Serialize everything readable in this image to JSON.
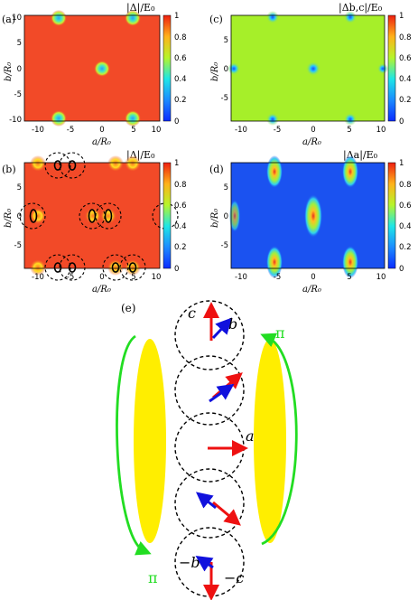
{
  "panels": [
    {
      "id": "a",
      "label": "(a)",
      "title": "|Δ|/E₀",
      "xlabel": "a/R₀",
      "ylabel": "b/R₀",
      "xticks": [
        "-10",
        "-5",
        "0",
        "5",
        "10"
      ],
      "yticks": [
        "10",
        "5",
        "0",
        "-5",
        "-10"
      ],
      "cbar": [
        "1",
        "0.8",
        "0.6",
        "0.4",
        "0.2",
        "0"
      ]
    },
    {
      "id": "b",
      "label": "(b)",
      "title": "|Δ|/E₀",
      "xlabel": "a/R₀",
      "ylabel": "b/R₀",
      "xticks": [
        "-10",
        "-5",
        "0",
        "5",
        "10"
      ],
      "yticks": [
        "5",
        "0",
        "-5"
      ],
      "cbar": [
        "1",
        "0.8",
        "0.6",
        "0.4",
        "0.2",
        "0"
      ]
    },
    {
      "id": "c",
      "label": "(c)",
      "title": "|Δb,c|/E₀",
      "xlabel": "a/R₀",
      "ylabel": "b/R₀",
      "xticks": [
        "-10",
        "-5",
        "0",
        "5",
        "10"
      ],
      "yticks": [
        "5",
        "0",
        "-5"
      ],
      "cbar": [
        "1",
        "0.8",
        "0.6",
        "0.4",
        "0.2",
        "0"
      ]
    },
    {
      "id": "d",
      "label": "(d)",
      "title": "|Δa|/E₀",
      "xlabel": "a/R₀",
      "ylabel": "b/R₀",
      "xticks": [
        "-10",
        "-5",
        "0",
        "5",
        "10"
      ],
      "yticks": [
        "5",
        "0",
        "-5"
      ],
      "cbar": [
        "1",
        "0.8",
        "0.6",
        "0.4",
        "0.2",
        "0"
      ]
    }
  ],
  "diagram": {
    "label": "(e)",
    "top_c": "c",
    "top_b": "b",
    "mid_a": "a",
    "bot_mb": "−b",
    "bot_mc": "−c",
    "pi_right": "π",
    "pi_left": "π"
  },
  "colors": {
    "red": "#f24a28",
    "green": "#a6ef29",
    "blue": "#1b52f0",
    "yellow": "#ffee00",
    "arrow_green": "#22dd22",
    "arrow_red": "#ee1111",
    "arrow_blue": "#1111dd"
  }
}
